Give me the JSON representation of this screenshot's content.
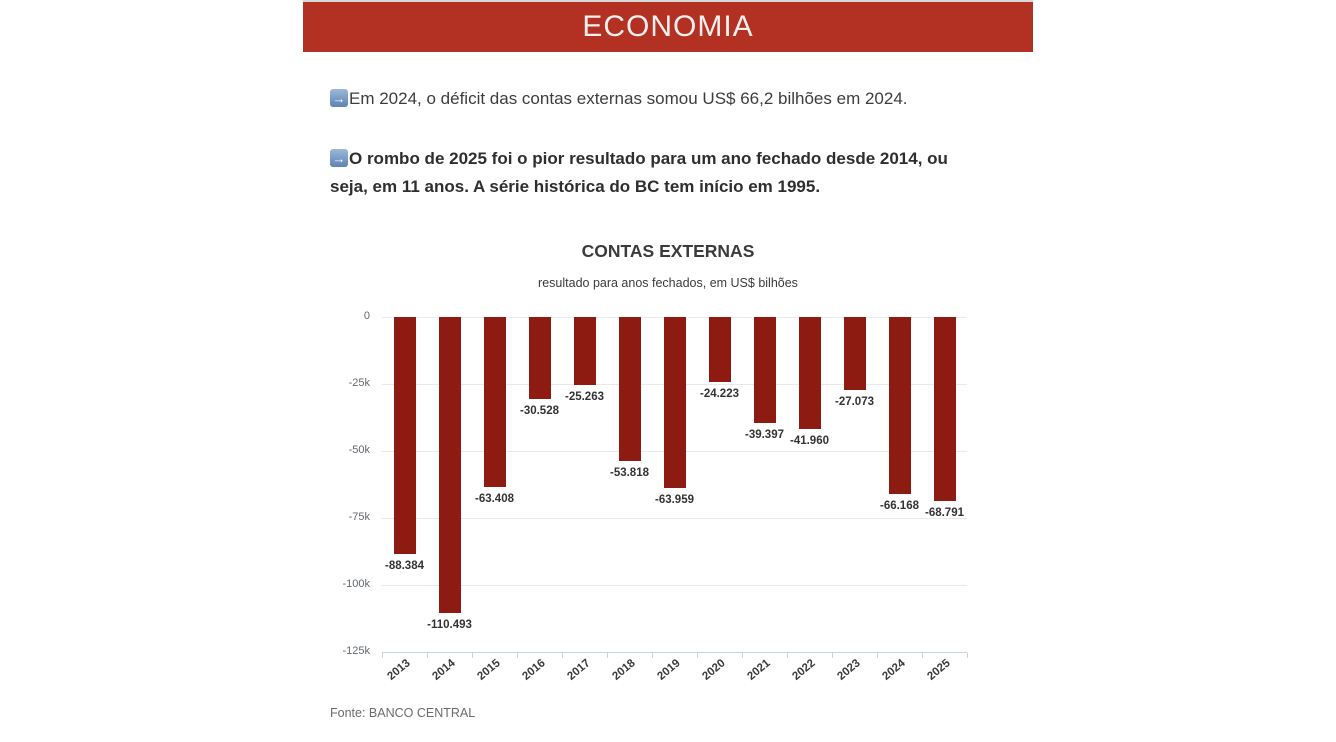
{
  "banner": {
    "title": "ECONOMIA",
    "background_color": "#b33122"
  },
  "icons": {
    "right_arrow": "→"
  },
  "bullets": [
    {
      "icon": "right-arrow-emoji",
      "text": "Em 2024, o déficit das contas externas somou US$ 66,2 bilhões em 2024.",
      "bold": false
    },
    {
      "icon": "right-arrow-emoji",
      "text": "O rombo de 2025 foi o pior resultado para um ano fechado desde 2014, ou seja, em 11 anos. A série histórica do BC tem início em 1995.",
      "bold": true
    }
  ],
  "chart_data": {
    "type": "bar",
    "title": "CONTAS EXTERNAS",
    "subtitle": "resultado para anos fechados, em US$ bilhões",
    "categories": [
      "2013",
      "2014",
      "2015",
      "2016",
      "2017",
      "2018",
      "2019",
      "2020",
      "2021",
      "2022",
      "2023",
      "2024",
      "2025"
    ],
    "values": [
      -88384,
      -110493,
      -63408,
      -30528,
      -25263,
      -53818,
      -63959,
      -24223,
      -39397,
      -41960,
      -27073,
      -66168,
      -68791
    ],
    "value_labels": [
      "-88.384",
      "-110.493",
      "-63.408",
      "-30.528",
      "-25.263",
      "-53.818",
      "-63.959",
      "-24.223",
      "-39.397",
      "-41.960",
      "-27.073",
      "-66.168",
      "-68.791"
    ],
    "ytick_labels": [
      "0",
      "-25k",
      "-50k",
      "-75k",
      "-100k",
      "-125k"
    ],
    "ylim": [
      -125000,
      0
    ],
    "bar_color": "#8e1b11",
    "grid": true,
    "axis_line_color": "#c9d4e2",
    "legend": "none"
  },
  "footer": {
    "source": "Fonte: BANCO CENTRAL"
  }
}
